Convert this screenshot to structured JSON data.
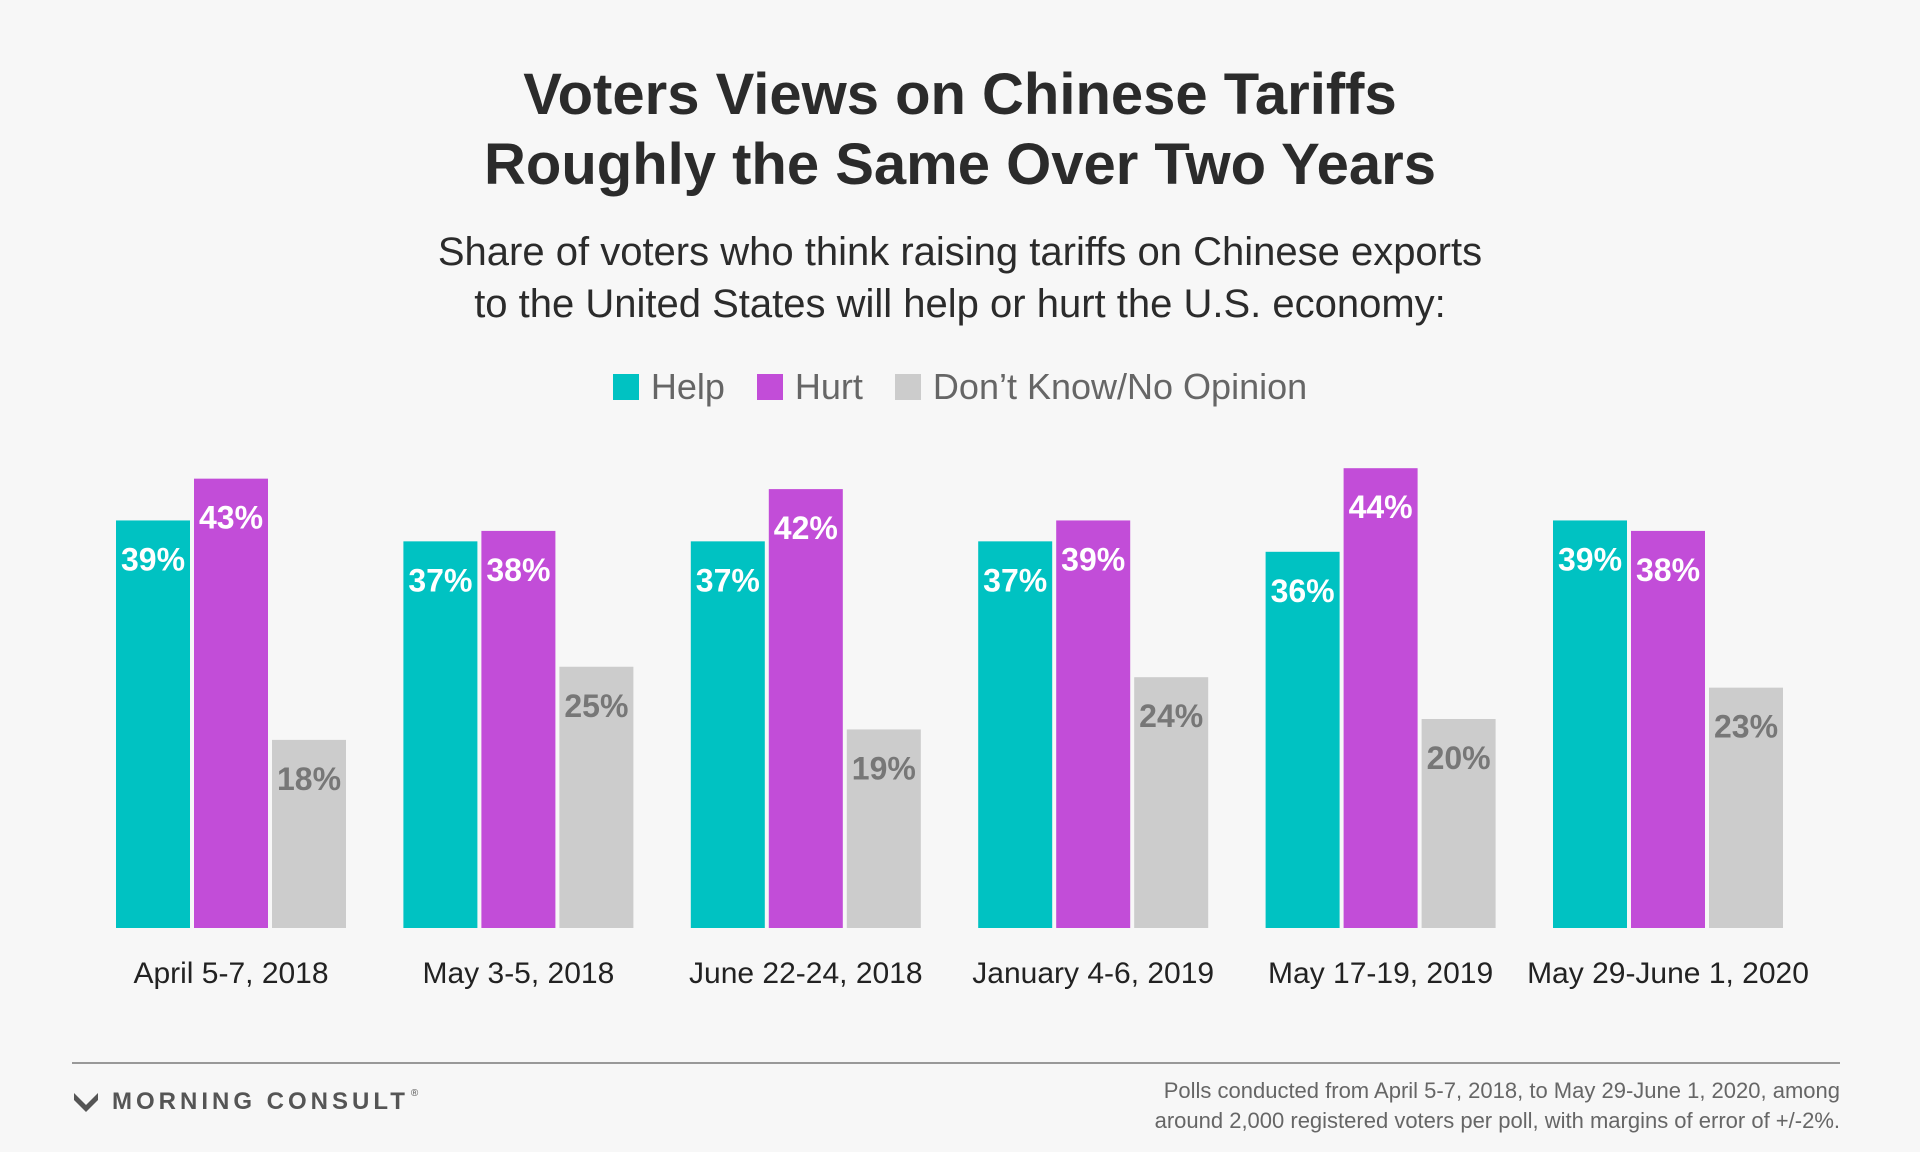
{
  "title_lines": [
    "Voters Views on Chinese Tariffs",
    "Roughly the Same Over Two Years"
  ],
  "subtitle_lines": [
    "Share of voters who think raising tariffs on Chinese exports",
    "to the United States will help or hurt the U.S. economy:"
  ],
  "colors": {
    "help": "#00c2c2",
    "hurt": "#c24dd8",
    "dk": "#cccccc"
  },
  "chart_data": {
    "type": "bar",
    "title": "Voters Views on Chinese Tariffs Roughly the Same Over Two Years",
    "subtitle": "Share of voters who think raising tariffs on Chinese exports to the United States will help or hurt the U.S. economy:",
    "categories": [
      "April 5-7, 2018",
      "May 3-5, 2018",
      "June 22-24, 2018",
      "January 4-6, 2019",
      "May 17-19, 2019",
      "May 29-June 1, 2020"
    ],
    "series": [
      {
        "name": "Help",
        "values": [
          39,
          37,
          37,
          37,
          36,
          39
        ],
        "labels": [
          "39%",
          "37%",
          "37%",
          "37%",
          "36%",
          "39%"
        ]
      },
      {
        "name": "Hurt",
        "values": [
          43,
          38,
          42,
          39,
          44,
          38
        ],
        "labels": [
          "43%",
          "38%",
          "42%",
          "39%",
          "44%",
          "38%"
        ]
      },
      {
        "name": "Don’t Know/No Opinion",
        "values": [
          18,
          25,
          19,
          24,
          20,
          23
        ],
        "labels": [
          "18%",
          "25%",
          "19%",
          "24%",
          "20%",
          "23%"
        ]
      }
    ],
    "ylim": [
      0,
      44
    ],
    "legend": "top-center",
    "grid": false,
    "xlabel": "",
    "ylabel": ""
  },
  "footer": {
    "brand": "MORNING CONSULT",
    "brand_mark": "registered-mark",
    "logo_icon": "morning-consult-logo-icon",
    "source_lines": [
      "Polls conducted from April 5-7, 2018, to May 29-June 1, 2020, among",
      "around 2,000 registered voters per poll, with margins of error of +/-2%."
    ]
  }
}
